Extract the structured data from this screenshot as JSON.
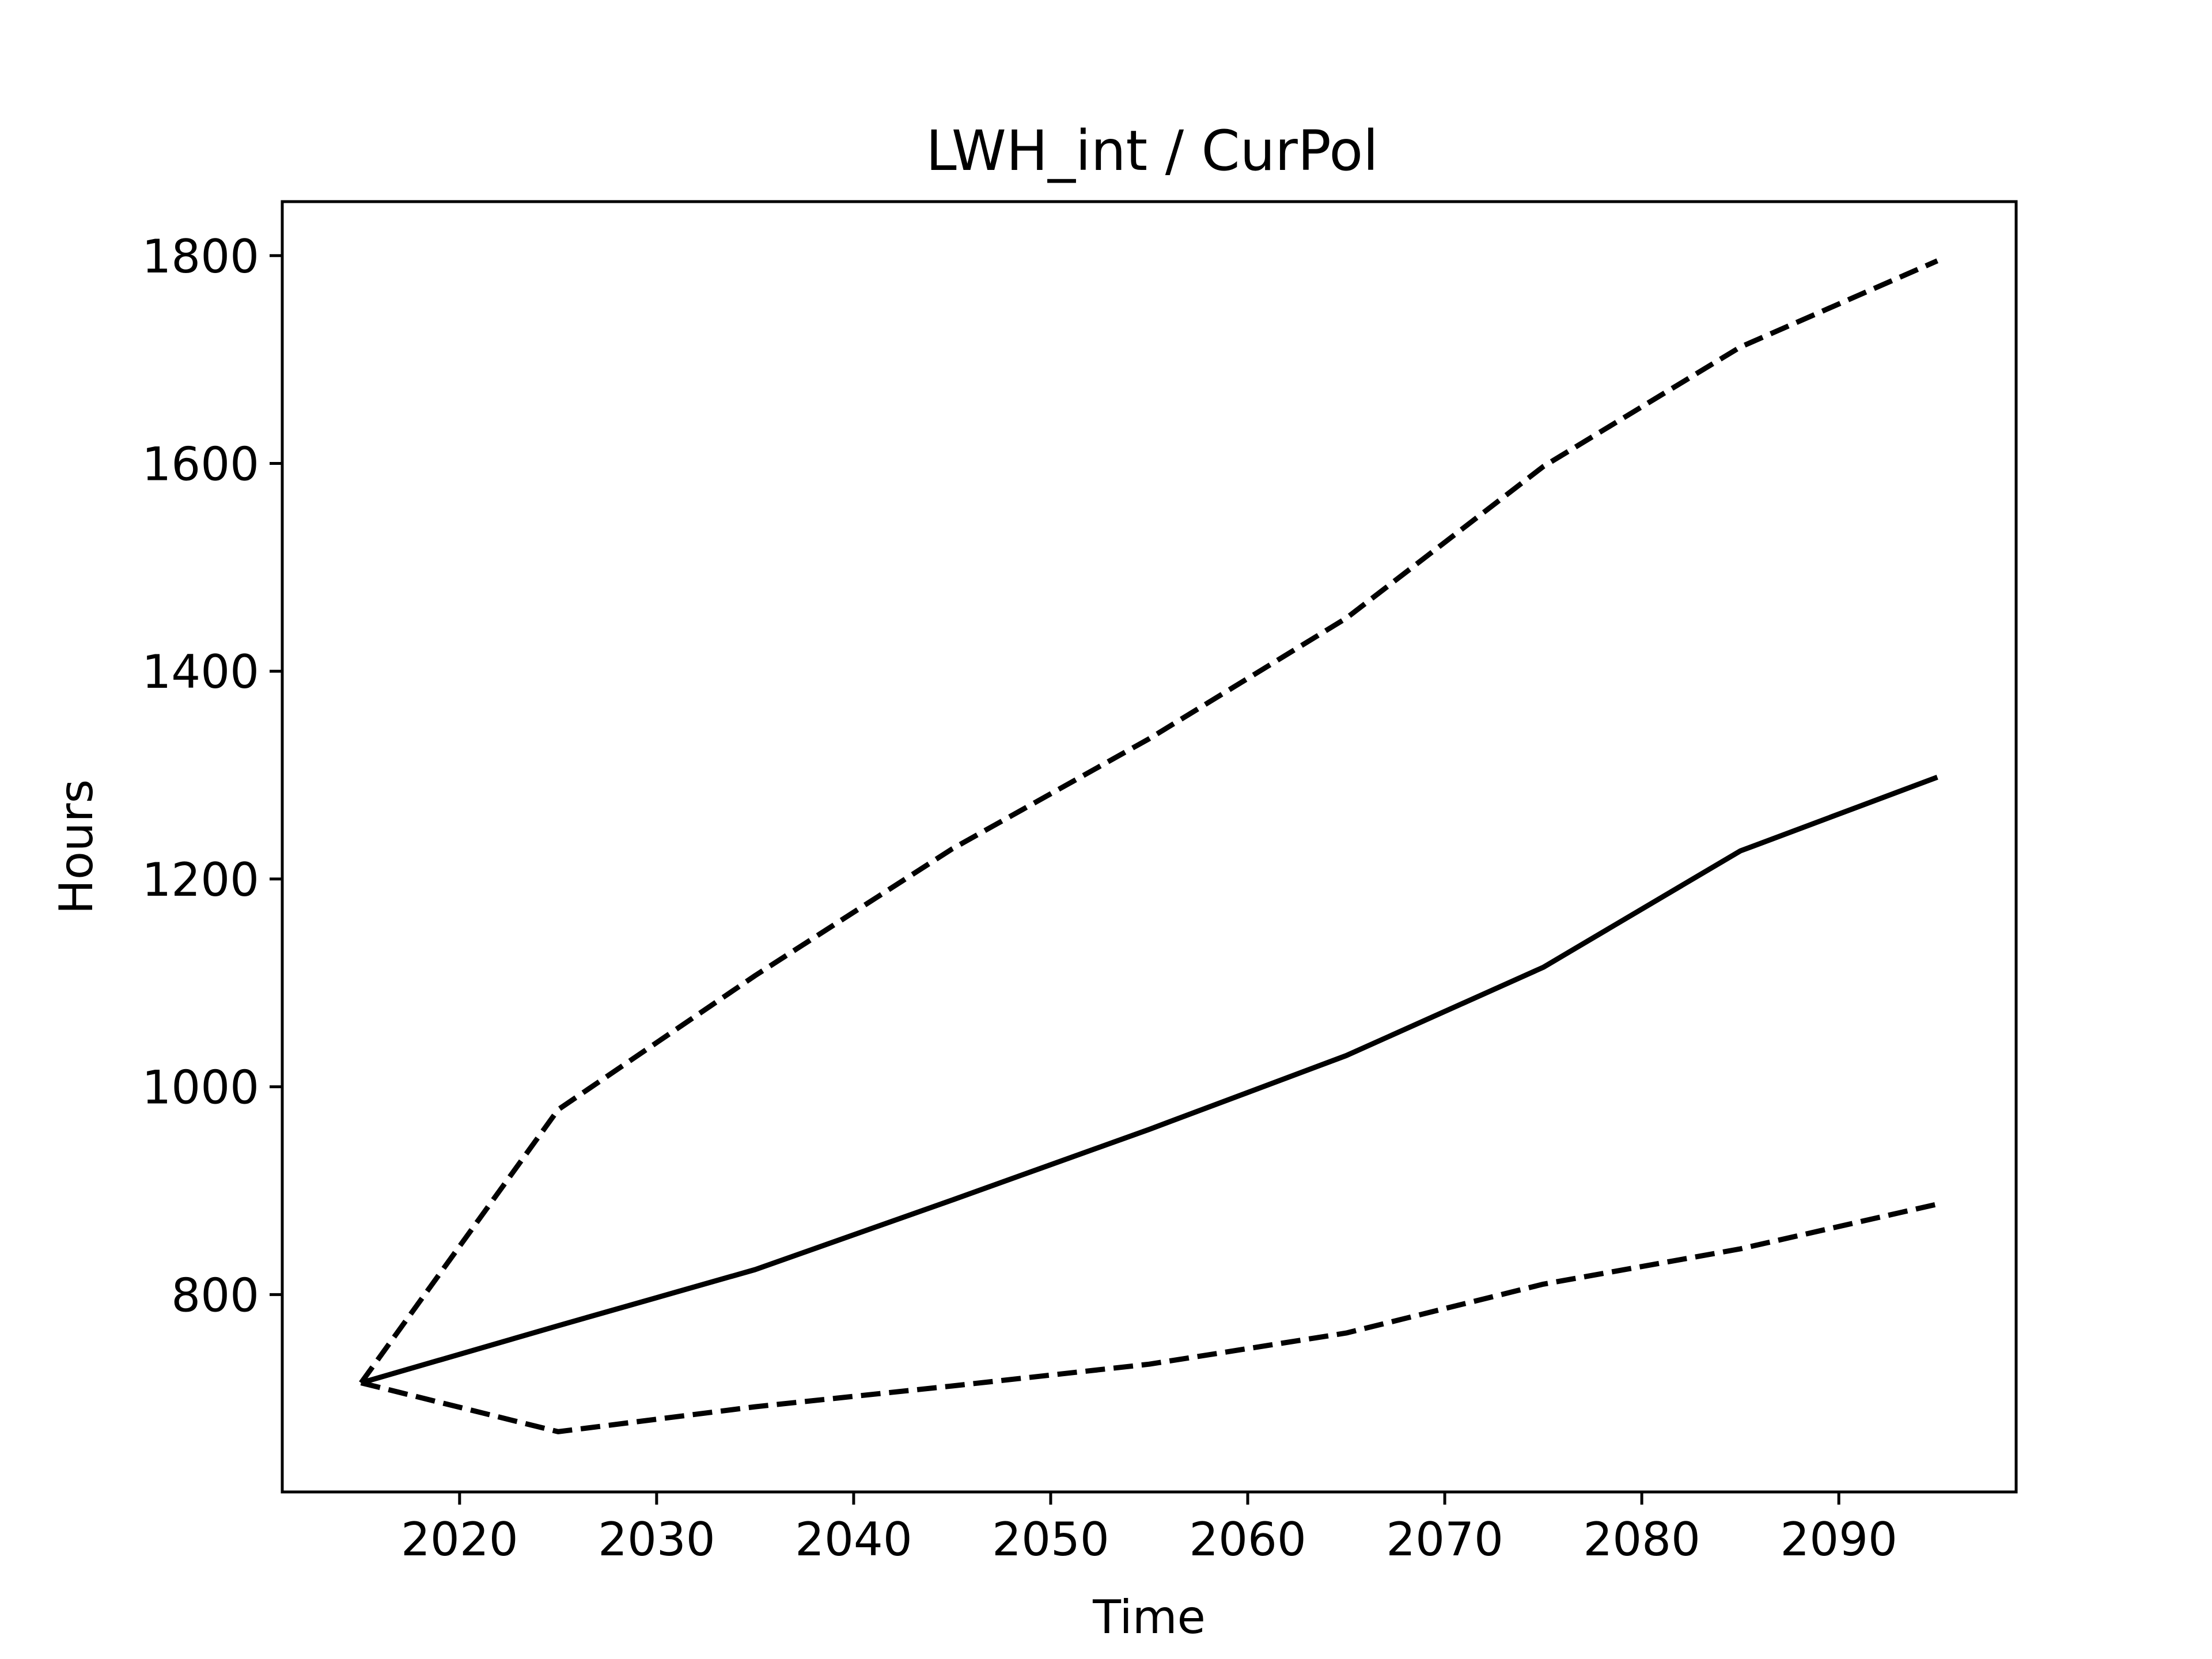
{
  "chart_data": {
    "type": "line",
    "title": "LWH_int / CurPol",
    "xlabel": "Time",
    "ylabel": "Hours",
    "xlim": [
      2011,
      2099
    ],
    "ylim": [
      610,
      1852
    ],
    "x_ticks": [
      2020,
      2030,
      2040,
      2050,
      2060,
      2070,
      2080,
      2090
    ],
    "y_ticks": [
      800,
      1000,
      1200,
      1400,
      1600,
      1800
    ],
    "x_tick_labels": [
      "2020",
      "2030",
      "2040",
      "2050",
      "2060",
      "2070",
      "2080",
      "2090"
    ],
    "y_tick_labels": [
      "800",
      "1000",
      "1200",
      "1400",
      "1600",
      "1800"
    ],
    "grid": false,
    "legend": false,
    "x": [
      2015,
      2025,
      2035,
      2045,
      2055,
      2065,
      2075,
      2085,
      2095
    ],
    "series": [
      {
        "style": "solid",
        "color": "#000000",
        "values": [
          715,
          770,
          824,
          891,
          959,
          1030,
          1115,
          1227,
          1298
        ]
      },
      {
        "style": "dashed",
        "color": "#000000",
        "values": [
          715,
          978,
          1107,
          1229,
          1335,
          1451,
          1597,
          1712,
          1795
        ]
      },
      {
        "style": "dashed",
        "color": "#000000",
        "values": [
          715,
          668,
          692,
          712,
          733,
          763,
          810,
          844,
          887
        ]
      }
    ]
  }
}
